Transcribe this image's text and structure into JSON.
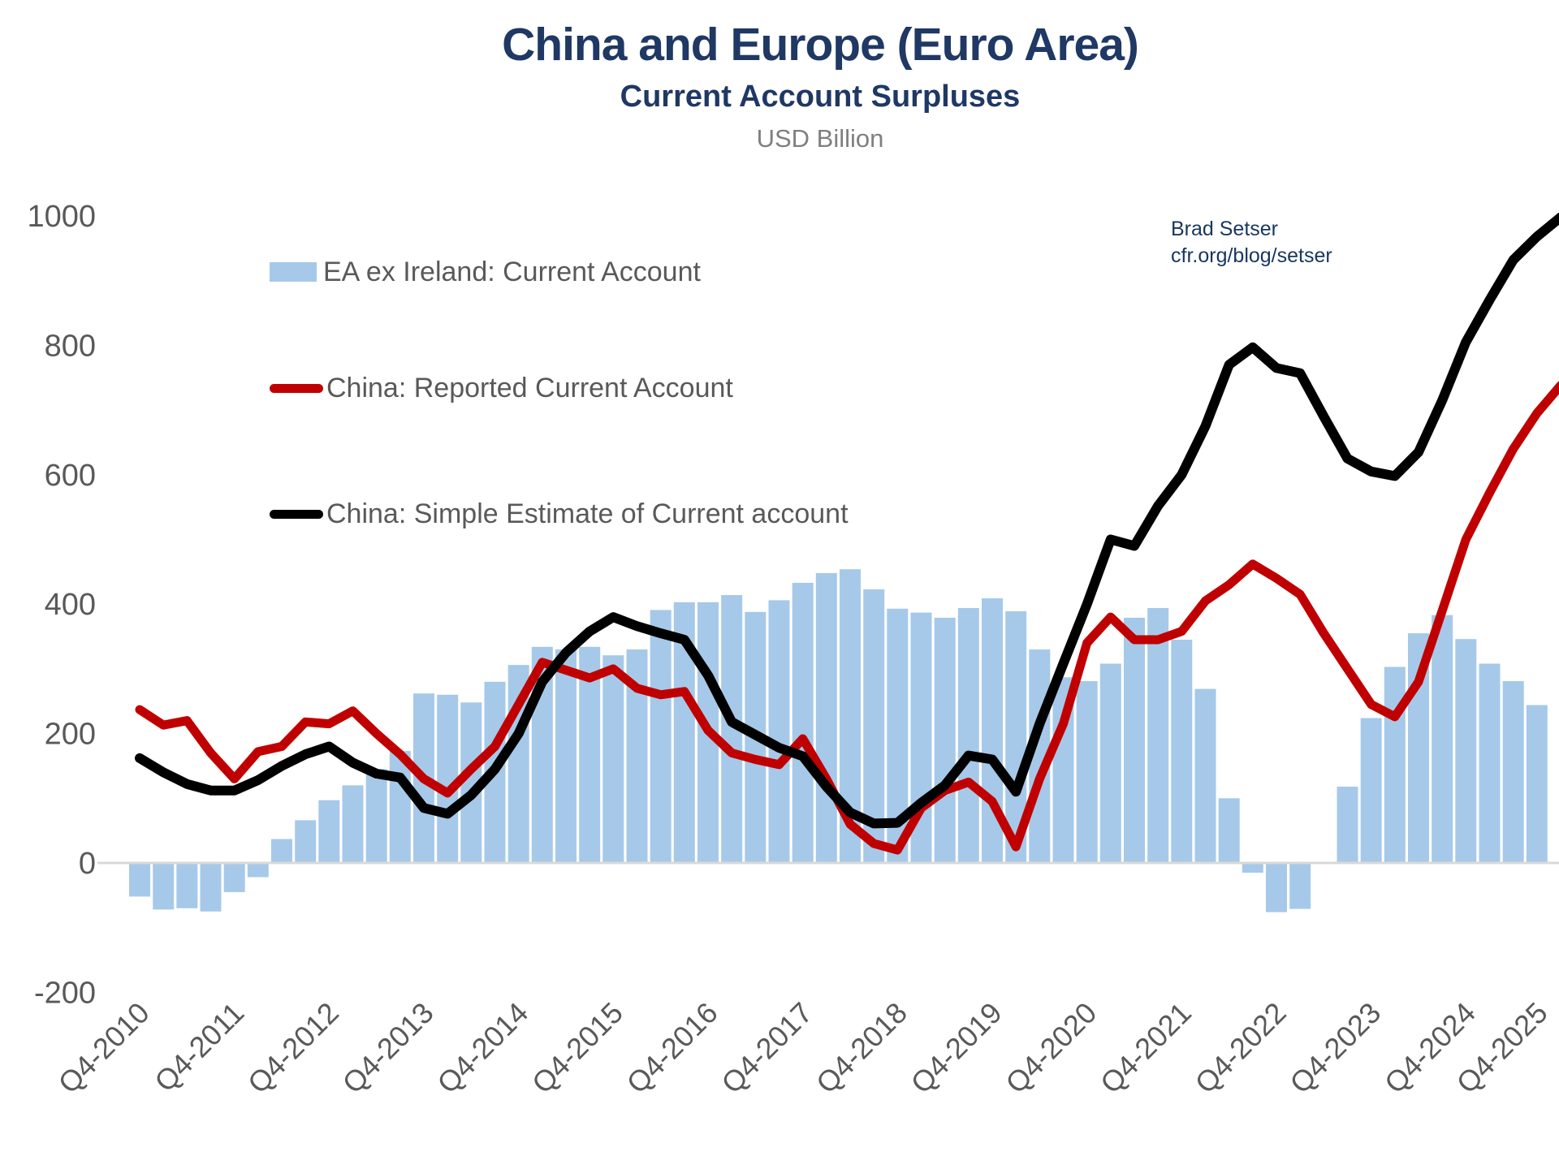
{
  "header": {
    "title": "China and Europe (Euro Area)",
    "subtitle": "Current Account Surpluses",
    "units": "USD Billion"
  },
  "attribution": {
    "line1": "Brad Setser",
    "line2": "cfr.org/blog/setser"
  },
  "colors": {
    "bar_blue": "#A6C9E9",
    "line_red": "#C00000",
    "line_black": "#000000",
    "title_navy": "#1F3864",
    "text_gray": "#595959",
    "units_gray": "#7F7F7F",
    "axis_line_gray": "#D9D9D9",
    "attribution_navy": "#17375E"
  },
  "chart_data": {
    "type": "combo-bar-line",
    "title": "China and Europe (Euro Area)",
    "subtitle": "Current Account Surpluses",
    "ylabel": "USD Billion",
    "ylim": [
      -200,
      1000
    ],
    "y_ticks": [
      1000,
      800,
      600,
      400,
      200,
      0,
      -200
    ],
    "grid": false,
    "legend_position": "upper-left",
    "x_frequency": "quarterly",
    "x_tick_every_n_points": 4,
    "x_tick_labels": [
      "Q4-2010",
      "Q4-2011",
      "Q4-2012",
      "Q4-2013",
      "Q4-2014",
      "Q4-2015",
      "Q4-2016",
      "Q4-2017",
      "Q4-2018",
      "Q4-2019",
      "Q4-2020",
      "Q4-2021",
      "Q4-2022",
      "Q4-2023",
      "Q4-2024",
      "Q4-2025"
    ],
    "series": [
      {
        "name": "EA ex Ireland: Current Account",
        "type": "bar",
        "color": "#A6C9E9",
        "values": [
          -52,
          -72,
          -70,
          -75,
          -45,
          -22,
          37,
          66,
          97,
          120,
          145,
          173,
          262,
          260,
          248,
          280,
          306,
          334,
          330,
          334,
          321,
          330,
          391,
          403,
          403,
          414,
          388,
          406,
          433,
          448,
          454,
          423,
          393,
          387,
          379,
          394,
          409,
          389,
          330,
          287,
          281,
          308,
          379,
          394,
          345,
          269,
          100,
          -15,
          -76,
          -71,
          0,
          118,
          224,
          303,
          355,
          383,
          346,
          308,
          281,
          244,
          null
        ]
      },
      {
        "name": "China: Reported Current Account",
        "type": "line",
        "color": "#C00000",
        "values": [
          237,
          213,
          220,
          170,
          130,
          172,
          180,
          218,
          215,
          235,
          200,
          168,
          130,
          108,
          145,
          180,
          245,
          310,
          298,
          286,
          300,
          270,
          260,
          265,
          205,
          170,
          160,
          152,
          192,
          130,
          60,
          30,
          20,
          85,
          112,
          125,
          95,
          25,
          130,
          215,
          340,
          380,
          345,
          345,
          358,
          405,
          430,
          462,
          440,
          415,
          355,
          300,
          245,
          226,
          280,
          390,
          500,
          572,
          640,
          695,
          738
        ]
      },
      {
        "name": "China: Simple Estimate of Current account",
        "type": "line",
        "color": "#000000",
        "values": [
          162,
          140,
          122,
          112,
          112,
          128,
          150,
          168,
          180,
          155,
          138,
          132,
          85,
          76,
          105,
          145,
          200,
          280,
          325,
          358,
          380,
          366,
          355,
          345,
          290,
          218,
          198,
          178,
          165,
          118,
          78,
          61,
          62,
          93,
          120,
          166,
          160,
          110,
          215,
          308,
          400,
          500,
          490,
          552,
          600,
          675,
          770,
          797,
          765,
          757,
          690,
          625,
          605,
          598,
          635,
          715,
          805,
          870,
          932,
          968,
          998
        ]
      }
    ]
  }
}
